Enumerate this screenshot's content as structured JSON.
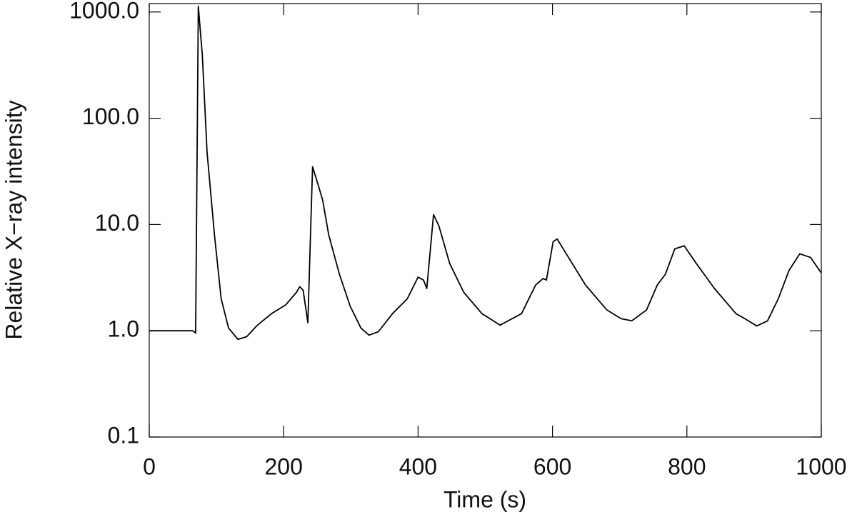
{
  "chart_data": {
    "type": "line",
    "x_label": "Time (s)",
    "y_label": "Relative X−ray intensity",
    "y_scale": "log",
    "color": "#000000",
    "xlim": [
      0,
      1000
    ],
    "xticks": [
      0,
      200,
      400,
      600,
      800,
      1000
    ],
    "ylim": [
      0.1,
      1200
    ],
    "yticks": [
      {
        "value": 0.1,
        "label": "0.1"
      },
      {
        "value": 1,
        "label": "1.0"
      },
      {
        "value": 10,
        "label": "10.0"
      },
      {
        "value": 100,
        "label": "100.0"
      },
      {
        "value": 1000,
        "label": "1000.0"
      }
    ],
    "x": [
      0,
      65,
      69,
      73,
      79,
      86,
      97,
      107,
      118,
      132,
      145,
      161,
      182,
      203,
      219,
      224,
      229,
      236,
      243,
      251,
      258,
      267,
      283,
      299,
      315,
      327,
      341,
      362,
      384,
      400,
      408,
      413,
      423,
      431,
      447,
      468,
      495,
      522,
      554,
      575,
      586,
      591,
      601,
      607,
      623,
      649,
      681,
      702,
      718,
      740,
      756,
      768,
      782,
      796,
      814,
      841,
      873,
      888,
      904,
      920,
      936,
      952,
      968,
      984,
      1000
    ],
    "values": [
      1.0,
      1.0,
      0.95,
      1130,
      390,
      48,
      8.0,
      2.0,
      1.06,
      0.83,
      0.88,
      1.13,
      1.45,
      1.75,
      2.3,
      2.6,
      2.4,
      1.19,
      35,
      24,
      17,
      8.0,
      3.4,
      1.7,
      1.06,
      0.91,
      0.98,
      1.45,
      2.0,
      3.2,
      3.0,
      2.5,
      12.4,
      9.7,
      4.3,
      2.3,
      1.45,
      1.13,
      1.45,
      2.7,
      3.1,
      3.0,
      6.9,
      7.3,
      5.0,
      2.7,
      1.57,
      1.3,
      1.24,
      1.57,
      2.7,
      3.4,
      5.9,
      6.3,
      4.3,
      2.5,
      1.45,
      1.28,
      1.11,
      1.24,
      2.0,
      3.7,
      5.3,
      4.9,
      3.5
    ]
  }
}
